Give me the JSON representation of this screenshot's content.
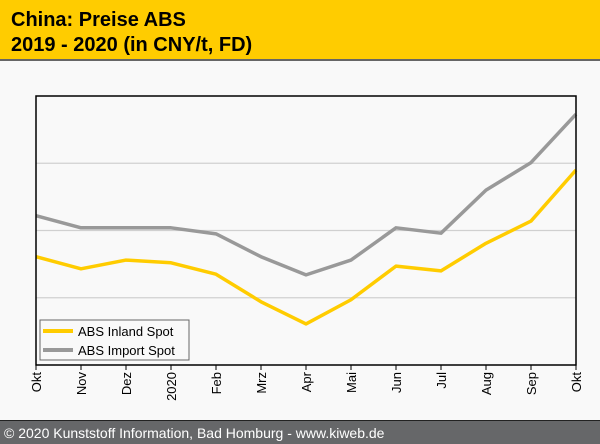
{
  "header": {
    "title_line1": "China: Preise ABS",
    "title_line2": "2019 - 2020 (in CNY/t, FD)"
  },
  "footer": {
    "copyright": "© 2020 Kunststoff Information, Bad Homburg - www.kiweb.de"
  },
  "colors": {
    "header_bg": "#ffcc00",
    "footer_bg": "#666769",
    "inland": "#ffcc00",
    "import": "#999999"
  },
  "chart_data": {
    "type": "line",
    "title": "China: Preise ABS 2019 - 2020 (in CNY/t, FD)",
    "xlabel": "",
    "ylabel": "",
    "categories": [
      "Okt",
      "Nov",
      "Dez",
      "2020",
      "Feb",
      "Mrz",
      "Apr",
      "Mai",
      "Jun",
      "Jul",
      "Aug",
      "Sep",
      "Okt"
    ],
    "ylim": [
      0,
      4
    ],
    "y_note": "relative scale, no y tick labels shown",
    "grid": true,
    "gridlines": [
      1,
      2,
      3
    ],
    "legend_position": "bottom-left",
    "series": [
      {
        "name": "ABS Inland Spot",
        "color": "#ffcc00",
        "values": [
          1.61,
          1.43,
          1.56,
          1.52,
          1.35,
          0.94,
          0.61,
          0.97,
          1.47,
          1.4,
          1.81,
          2.14,
          2.9
        ]
      },
      {
        "name": "ABS Import Spot",
        "color": "#999999",
        "values": [
          2.22,
          2.04,
          2.04,
          2.04,
          1.95,
          1.61,
          1.34,
          1.56,
          2.04,
          1.96,
          2.6,
          3.01,
          3.73
        ]
      }
    ]
  }
}
